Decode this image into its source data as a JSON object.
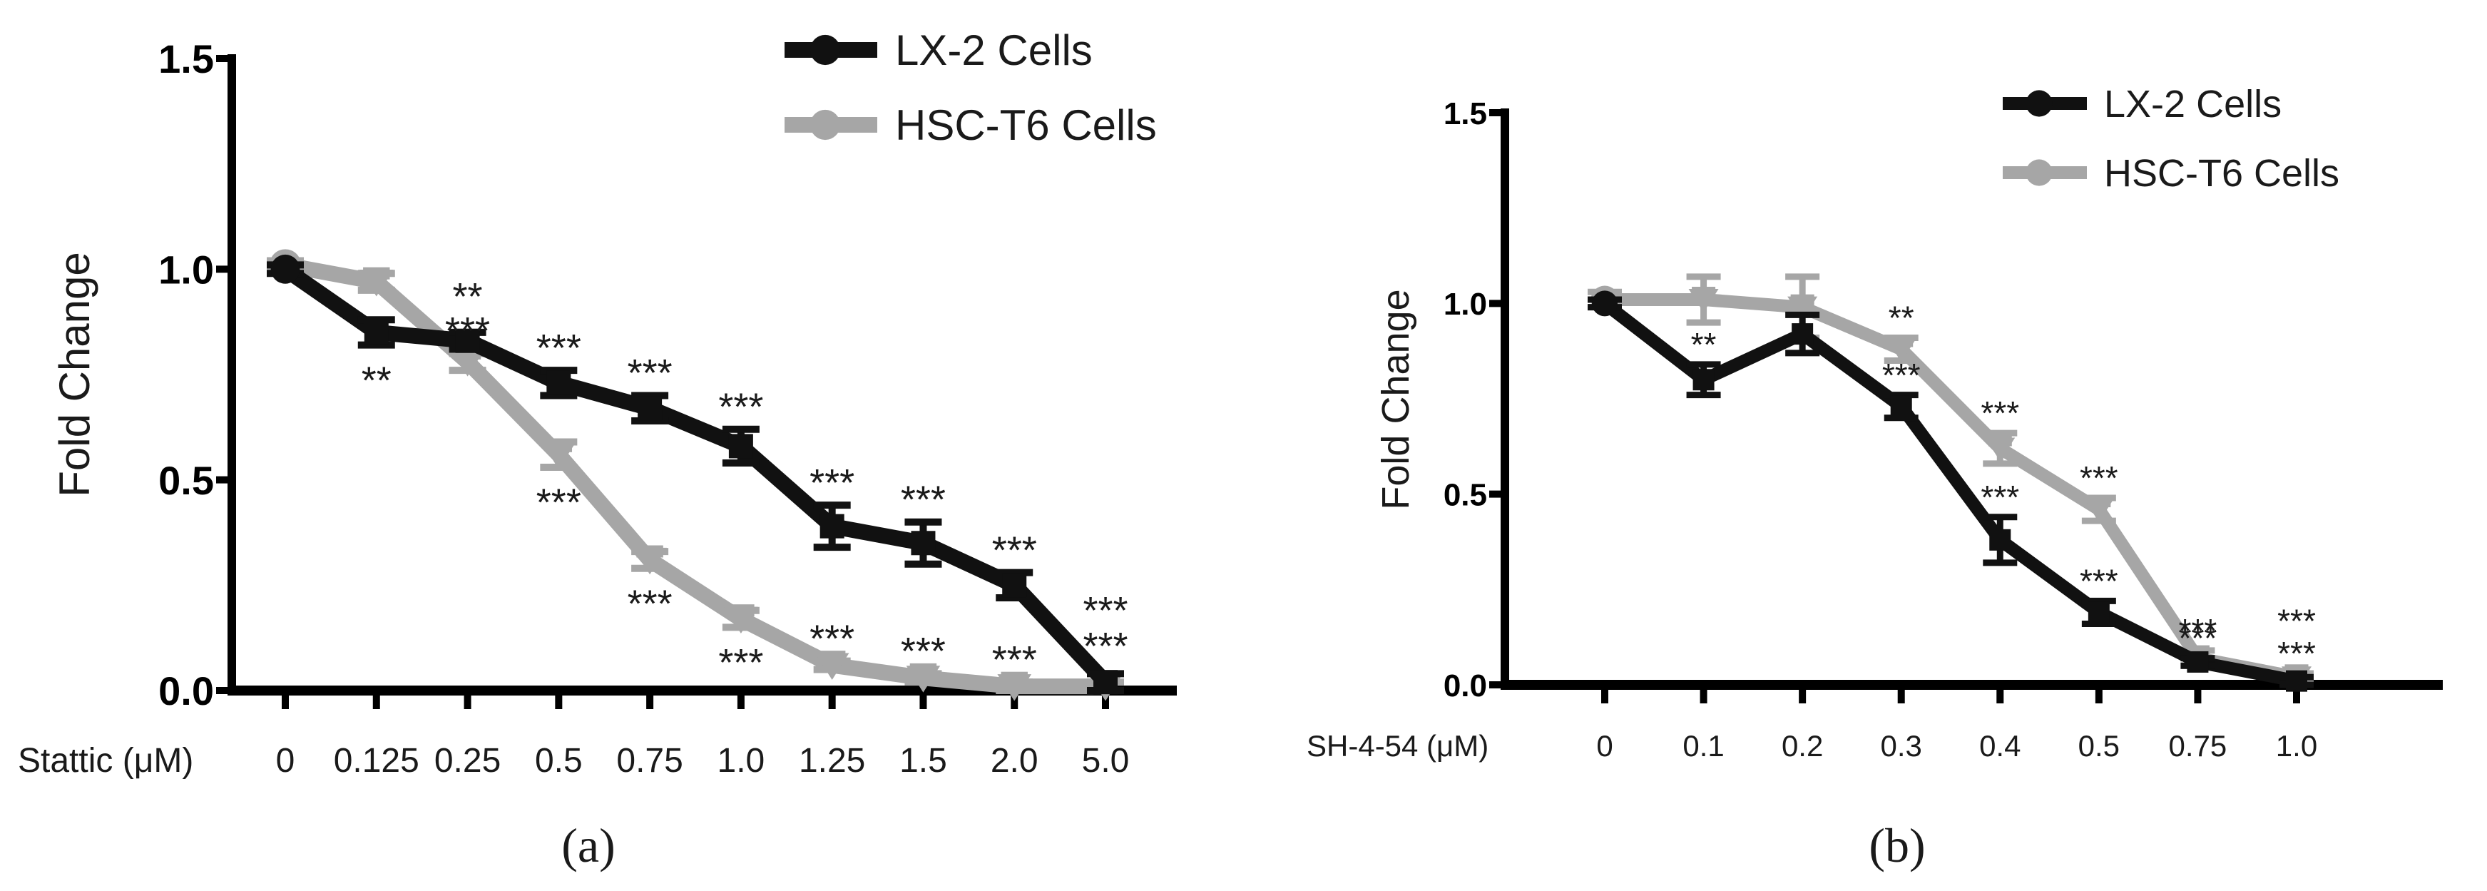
{
  "colors": {
    "lx2": "#111111",
    "hsct6": "#a6a6a6",
    "axis": "#000000",
    "text": "#1a1a1a"
  },
  "chart_data": [
    {
      "type": "line",
      "panel_label": "(a)",
      "title": "",
      "xlabel": "Stattic (μM)",
      "ylabel": "Fold Change",
      "ylim": [
        0,
        1.5
      ],
      "yticks": [
        "0.0",
        "0.5",
        "1.0",
        "1.5"
      ],
      "categories": [
        "0",
        "0.125",
        "0.25",
        "0.5",
        "0.75",
        "1.0",
        "1.25",
        "1.5",
        "2.0",
        "5.0"
      ],
      "legend_position": "top-right",
      "series": [
        {
          "name": "LX-2 Cells",
          "color_key": "lx2",
          "values": [
            1.0,
            0.85,
            0.83,
            0.73,
            0.67,
            0.58,
            0.39,
            0.35,
            0.25,
            0.02
          ],
          "errors": [
            0.01,
            0.03,
            0.02,
            0.03,
            0.03,
            0.04,
            0.05,
            0.05,
            0.03,
            0.02
          ],
          "sig": [
            "",
            "**",
            "",
            "***",
            "***",
            "***",
            "***",
            "***",
            "***",
            "***"
          ]
        },
        {
          "name": "HSC-T6 Cells",
          "color_key": "hsct6",
          "values": [
            1.01,
            0.97,
            0.78,
            0.56,
            0.31,
            0.17,
            0.06,
            0.03,
            0.01,
            0.01
          ],
          "errors": [
            0.01,
            0.02,
            0.02,
            0.03,
            0.02,
            0.02,
            0.01,
            0.01,
            0.01,
            0.01
          ],
          "sig": [
            "",
            "",
            "**\n***",
            "***",
            "***",
            "***",
            "***",
            "***",
            "***",
            "***"
          ]
        }
      ]
    },
    {
      "type": "line",
      "panel_label": "(b)",
      "title": "",
      "xlabel": "SH-4-54 (μM)",
      "ylabel": "Fold Change",
      "ylim": [
        0,
        1.5
      ],
      "yticks": [
        "0.0",
        "0.5",
        "1.0",
        "1.5"
      ],
      "categories": [
        "0",
        "0.1",
        "0.2",
        "0.3",
        "0.4",
        "0.5",
        "0.75",
        "1.0"
      ],
      "legend_position": "top-right",
      "series": [
        {
          "name": "LX-2 Cells",
          "color_key": "lx2",
          "values": [
            1.0,
            0.8,
            0.92,
            0.73,
            0.38,
            0.19,
            0.06,
            0.01
          ],
          "errors": [
            0.01,
            0.04,
            0.05,
            0.03,
            0.06,
            0.03,
            0.01,
            0.01
          ],
          "sig": [
            "",
            "**",
            "",
            "***",
            "***",
            "***",
            "***",
            "***"
          ]
        },
        {
          "name": "HSC-T6 Cells",
          "color_key": "hsct6",
          "values": [
            1.01,
            1.01,
            0.99,
            0.88,
            0.62,
            0.46,
            0.07,
            0.02
          ],
          "errors": [
            0.02,
            0.06,
            0.08,
            0.03,
            0.04,
            0.03,
            0.02,
            0.01
          ],
          "sig": [
            "",
            "",
            "",
            "**",
            "***",
            "***",
            "***",
            "***"
          ]
        }
      ]
    }
  ]
}
